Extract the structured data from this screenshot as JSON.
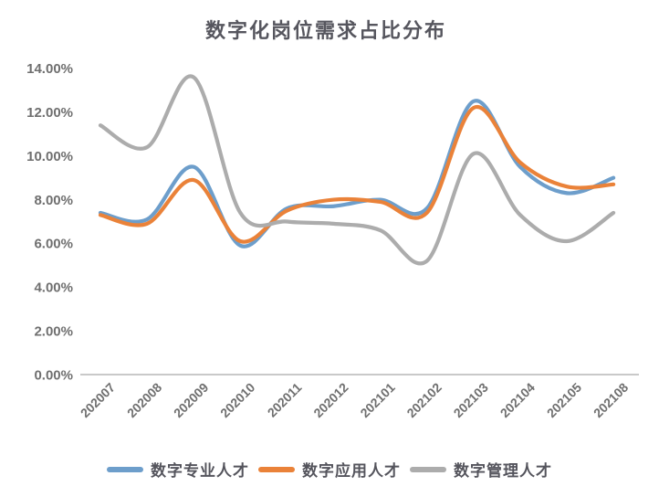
{
  "title": "数字化岗位需求占比分布",
  "chart_data": {
    "type": "line",
    "title": "数字化岗位需求占比分布",
    "categories": [
      "202007",
      "202008",
      "202009",
      "202010",
      "202011",
      "202012",
      "202101",
      "202102",
      "202103",
      "202104",
      "202105",
      "202108"
    ],
    "series": [
      {
        "name": "数字专业人才",
        "color": "#6D9ECB",
        "values": [
          7.4,
          7.1,
          9.5,
          5.9,
          7.6,
          7.7,
          8.0,
          7.6,
          12.5,
          9.5,
          8.3,
          9.0
        ]
      },
      {
        "name": "数字应用人才",
        "color": "#EA8239",
        "values": [
          7.3,
          6.9,
          8.9,
          6.1,
          7.5,
          8.0,
          7.9,
          7.4,
          12.2,
          9.7,
          8.6,
          8.7
        ]
      },
      {
        "name": "数字管理人才",
        "color": "#ACACAC",
        "values": [
          11.4,
          10.4,
          13.6,
          7.4,
          7.0,
          6.9,
          6.6,
          5.2,
          10.1,
          7.3,
          6.1,
          7.4
        ]
      }
    ],
    "y_tick_labels": [
      "14.00%",
      "12.00%",
      "10.00%",
      "8.00%",
      "6.00%",
      "4.00%",
      "2.00%",
      "0.00%"
    ],
    "y_tick_values": [
      14,
      12,
      10,
      8,
      6,
      4,
      2,
      0
    ],
    "ylim": [
      0,
      14
    ],
    "unit": "%",
    "grid": false,
    "smooth": true,
    "legend_position": "bottom"
  },
  "colors": {
    "title_text": "#56565E",
    "tick_text": "#6F6F6F",
    "legend_text": "#54545C",
    "axis_line": "#C9C9C9",
    "background": "#FFFFFF"
  }
}
